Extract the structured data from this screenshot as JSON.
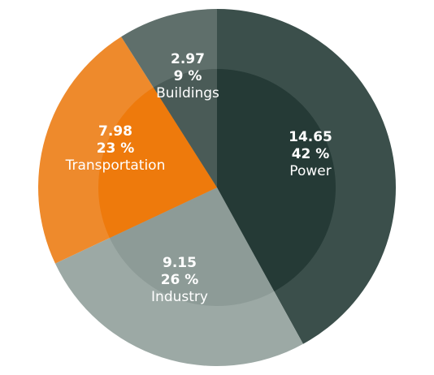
{
  "chart_data": {
    "type": "pie",
    "slices": [
      {
        "category": "Power",
        "value": "14.65",
        "percent": "42 %",
        "share": 42,
        "color": "#3b4f4b",
        "inner_color": "#253a36"
      },
      {
        "category": "Industry",
        "value": "9.15",
        "percent": "26 %",
        "share": 26,
        "color": "#9ca9a5",
        "inner_color": "#8d9b97"
      },
      {
        "category": "Transportation",
        "value": "7.98",
        "percent": "23 %",
        "share": 23,
        "color": "#ee8a2c",
        "inner_color": "#ee7a0c"
      },
      {
        "category": "Buildings",
        "value": "2.97",
        "percent": "9 %",
        "share": 9,
        "color": "#5f6f6b",
        "inner_color": "#4a5b57"
      }
    ],
    "start_angle": "top (12 o'clock)",
    "direction": "clockwise",
    "legend": "none",
    "label_color": "#ffffff"
  }
}
